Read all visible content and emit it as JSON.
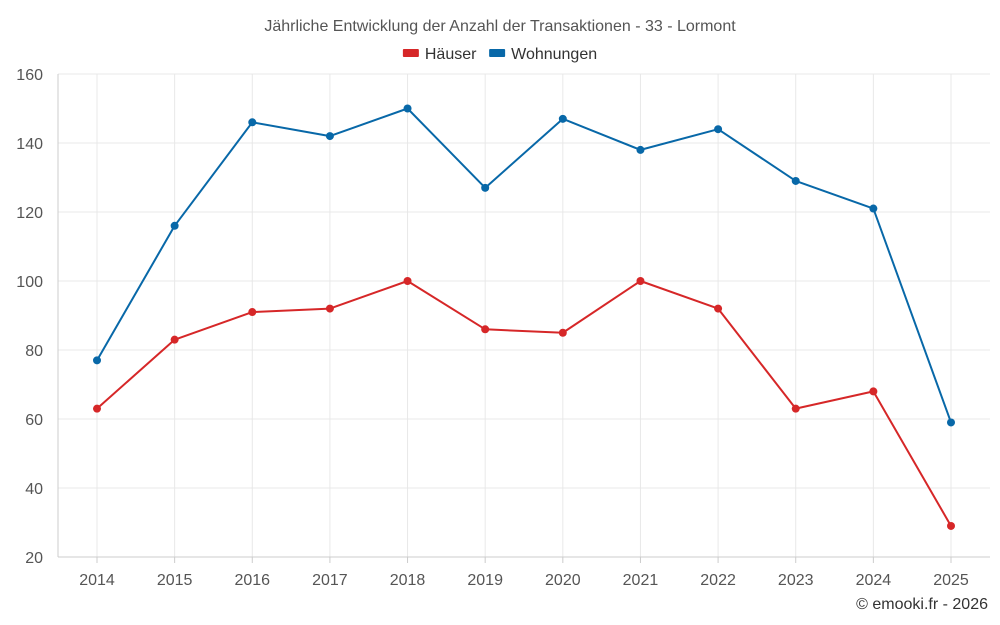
{
  "chart_data": {
    "type": "line",
    "title": "Jährliche Entwicklung der Anzahl der Transaktionen - 33 - Lormont",
    "xlabel": "",
    "ylabel": "",
    "categories": [
      "2014",
      "2015",
      "2016",
      "2017",
      "2018",
      "2019",
      "2020",
      "2021",
      "2022",
      "2023",
      "2024",
      "2025"
    ],
    "ylim": [
      20,
      160
    ],
    "yticks": [
      20,
      40,
      60,
      80,
      100,
      120,
      140,
      160
    ],
    "grid": true,
    "legend_position": "top-center",
    "series": [
      {
        "name": "Häuser",
        "color": "#d62728",
        "values": [
          63,
          83,
          91,
          92,
          100,
          86,
          85,
          100,
          92,
          63,
          68,
          29
        ]
      },
      {
        "name": "Wohnungen",
        "color": "#0868a8",
        "values": [
          77,
          116,
          146,
          142,
          150,
          127,
          147,
          138,
          144,
          129,
          121,
          59
        ]
      }
    ]
  },
  "credit": "© emooki.fr - 2026"
}
